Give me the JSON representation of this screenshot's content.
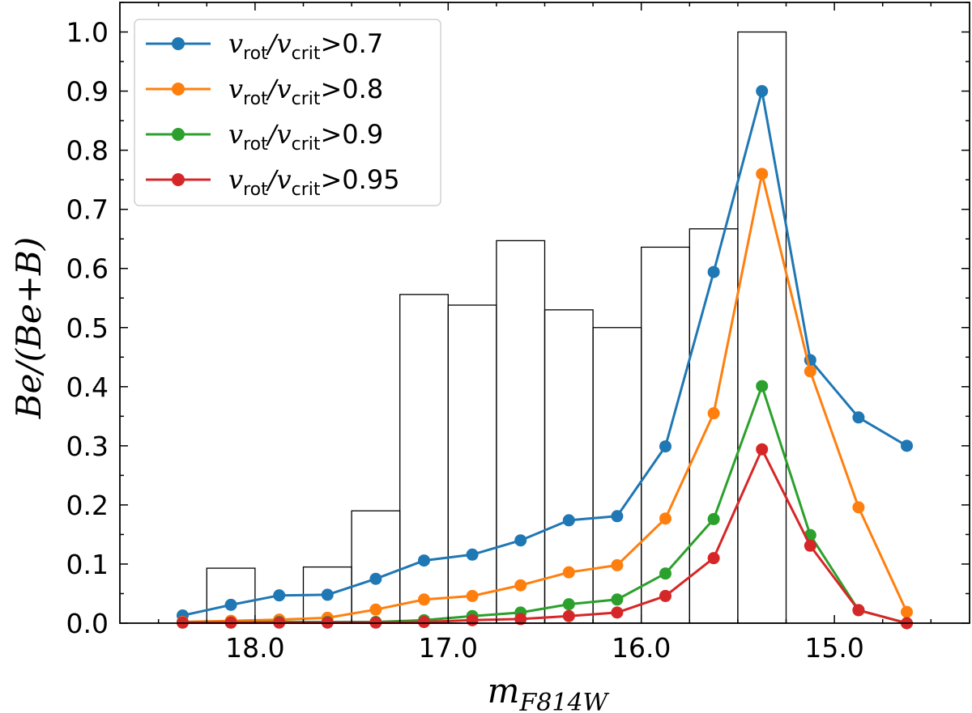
{
  "chart_data": {
    "type": "line",
    "xlabel": "m_F814W",
    "ylabel": "Be/(Be+B)",
    "xlim": [
      18.7,
      14.3
    ],
    "ylim": [
      0.0,
      1.05
    ],
    "x_inverted": true,
    "xticks": [
      18.0,
      17.0,
      16.0,
      15.0
    ],
    "xtick_labels": [
      "18.0",
      "17.0",
      "16.0",
      "15.0"
    ],
    "xminor_step": 0.25,
    "yticks": [
      0.0,
      0.1,
      0.2,
      0.3,
      0.4,
      0.5,
      0.6,
      0.7,
      0.8,
      0.9,
      1.0
    ],
    "ytick_labels": [
      "0.0",
      "0.1",
      "0.2",
      "0.3",
      "0.4",
      "0.5",
      "0.6",
      "0.7",
      "0.8",
      "0.9",
      "1.0"
    ],
    "yminor_step": 0.05,
    "grid": false,
    "legend_position": "top-left",
    "histogram": {
      "bin_edges": [
        18.25,
        18.0,
        17.75,
        17.5,
        17.25,
        17.0,
        16.75,
        16.5,
        16.25,
        16.0,
        15.75,
        15.5,
        15.25
      ],
      "values": [
        0.093,
        0.0,
        0.095,
        0.19,
        0.556,
        0.538,
        0.647,
        0.53,
        0.5,
        0.636,
        0.667,
        1.0
      ]
    },
    "x": [
      18.375,
      18.125,
      17.875,
      17.625,
      17.375,
      17.125,
      16.875,
      16.625,
      16.375,
      16.125,
      15.875,
      15.625,
      15.375,
      15.125,
      14.875,
      14.625
    ],
    "series": [
      {
        "name": "v_rot/v_crit>0.7",
        "color": "#1f77b4",
        "values": [
          0.013,
          0.031,
          0.047,
          0.048,
          0.075,
          0.106,
          0.116,
          0.14,
          0.174,
          0.181,
          0.299,
          0.594,
          0.9,
          0.445,
          0.348,
          0.3
        ]
      },
      {
        "name": "v_rot/v_crit>0.8",
        "color": "#ff7f0e",
        "values": [
          0.002,
          0.004,
          0.006,
          0.009,
          0.023,
          0.04,
          0.046,
          0.064,
          0.086,
          0.098,
          0.177,
          0.355,
          0.76,
          0.426,
          0.196,
          0.019
        ]
      },
      {
        "name": "v_rot/v_crit>0.9",
        "color": "#2ca02c",
        "values": [
          0.001,
          0.001,
          0.002,
          0.002,
          0.002,
          0.005,
          0.012,
          0.018,
          0.032,
          0.04,
          0.084,
          0.176,
          0.401,
          0.149,
          0.022,
          0.0
        ]
      },
      {
        "name": "v_rot/v_crit>0.95",
        "color": "#d62728",
        "values": [
          0.001,
          0.001,
          0.001,
          0.001,
          0.001,
          0.002,
          0.005,
          0.007,
          0.012,
          0.018,
          0.046,
          0.11,
          0.294,
          0.131,
          0.022,
          0.0
        ]
      }
    ],
    "legend": [
      {
        "sub_a": "rot",
        "sub_b": "crit",
        "threshold": ">0.7"
      },
      {
        "sub_a": "rot",
        "sub_b": "crit",
        "threshold": ">0.8"
      },
      {
        "sub_a": "rot",
        "sub_b": "crit",
        "threshold": ">0.9"
      },
      {
        "sub_a": "rot",
        "sub_b": "crit",
        "threshold": ">0.95"
      }
    ]
  }
}
